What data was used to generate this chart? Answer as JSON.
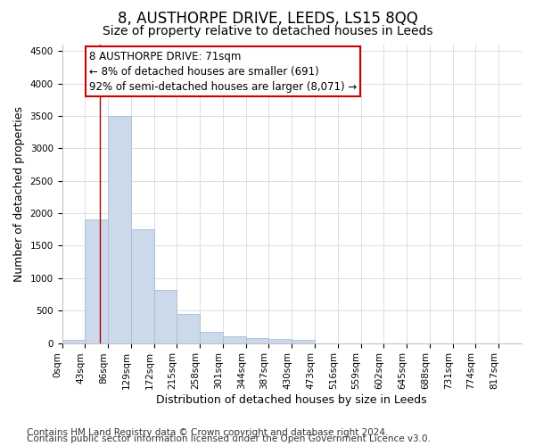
{
  "title": "8, AUSTHORPE DRIVE, LEEDS, LS15 8QQ",
  "subtitle": "Size of property relative to detached houses in Leeds",
  "xlabel": "Distribution of detached houses by size in Leeds",
  "ylabel": "Number of detached properties",
  "footnote1": "Contains HM Land Registry data © Crown copyright and database right 2024.",
  "footnote2": "Contains public sector information licensed under the Open Government Licence v3.0.",
  "bin_edges": [
    0,
    43,
    86,
    129,
    172,
    215,
    258,
    301,
    344,
    387,
    430,
    473,
    516,
    559,
    602,
    645,
    688,
    731,
    774,
    817,
    860
  ],
  "bar_heights": [
    50,
    1900,
    3500,
    1750,
    825,
    450,
    175,
    100,
    75,
    60,
    50,
    0,
    0,
    0,
    0,
    0,
    0,
    0,
    0,
    0
  ],
  "bar_color": "#ccd9ea",
  "bar_edge_color": "#aabcd4",
  "property_size": 71,
  "property_line_color": "#aa0000",
  "ylim": [
    0,
    4600
  ],
  "yticks": [
    0,
    500,
    1000,
    1500,
    2000,
    2500,
    3000,
    3500,
    4000,
    4500
  ],
  "annotation_line1": "8 AUSTHORPE DRIVE: 71sqm",
  "annotation_line2": "← 8% of detached houses are smaller (691)",
  "annotation_line3": "92% of semi-detached houses are larger (8,071) →",
  "annotation_box_color": "#ffffff",
  "annotation_box_edge": "#cc0000",
  "background_color": "#ffffff",
  "grid_color": "#d8dde8",
  "title_fontsize": 12,
  "subtitle_fontsize": 10,
  "axis_label_fontsize": 9,
  "tick_fontsize": 7.5,
  "annotation_fontsize": 8.5,
  "footnote_fontsize": 7.5
}
